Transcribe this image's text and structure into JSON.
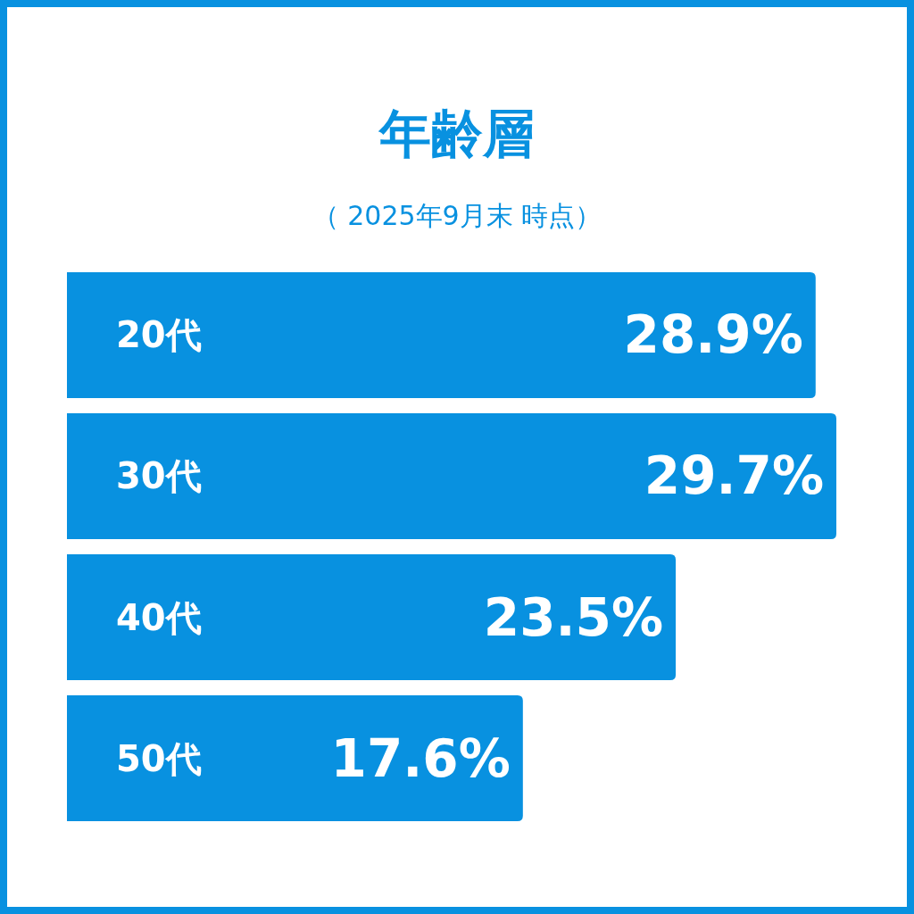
{
  "chart_data": {
    "type": "bar",
    "orientation": "horizontal",
    "title": "年齢層",
    "subtitle": "（ 2025年9月末 時点）",
    "categories": [
      "20代",
      "30代",
      "40代",
      "50代"
    ],
    "values": [
      28.9,
      29.7,
      23.5,
      17.6
    ],
    "color": "#0891e0",
    "value_labels": [
      "28.9%",
      "29.7%",
      "23.5%",
      "17.6%"
    ]
  }
}
